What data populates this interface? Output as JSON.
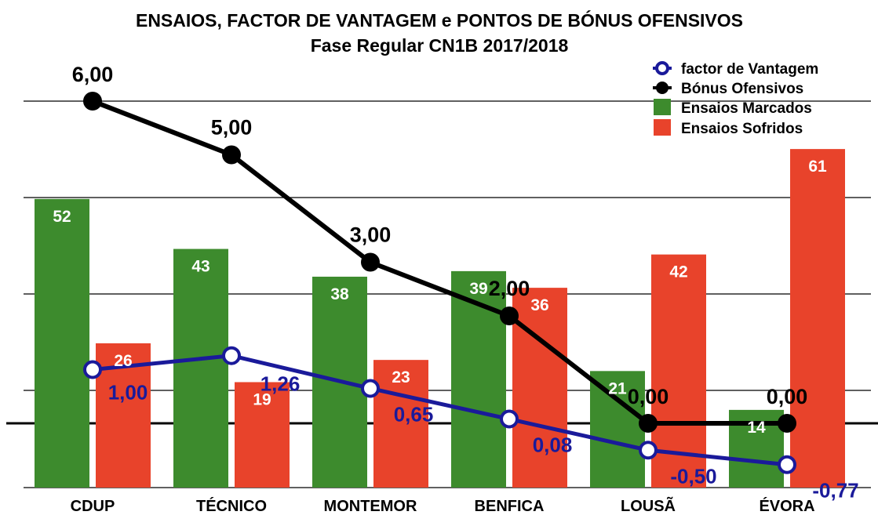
{
  "chart_data": {
    "type": "bar",
    "title": "ENSAIOS, FACTOR DE VANTAGEM e PONTOS DE BÓNUS OFENSIVOS",
    "subtitle": "Fase Regular CN1B 2017/2018",
    "categories": [
      "CDUP",
      "TÉCNICO",
      "MONTEMOR",
      "BENFICA",
      "LOUSÃ",
      "ÉVORA"
    ],
    "bar_series": [
      {
        "name": "Ensaios Marcados",
        "values": [
          52,
          43,
          38,
          39,
          21,
          14
        ],
        "color": "#3d8b2d"
      },
      {
        "name": "Ensaios Sofridos",
        "values": [
          26,
          19,
          23,
          36,
          42,
          61
        ],
        "color": "#e8432b"
      }
    ],
    "line_series": [
      {
        "name": "factor de Vantagem",
        "values": [
          1.0,
          1.26,
          0.65,
          0.08,
          -0.5,
          -0.77
        ],
        "labels": [
          "1,00",
          "1,26",
          "0,65",
          "0,08",
          "-0,50",
          "-0,77"
        ],
        "color": "#1a1a9a",
        "marker": "hollow-circle"
      },
      {
        "name": "Bónus Ofensivos",
        "values": [
          6.0,
          5.0,
          3.0,
          2.0,
          0.0,
          0.0
        ],
        "labels": [
          "6,00",
          "5,00",
          "3,00",
          "2,00",
          "0,00",
          "0,00"
        ],
        "color": "#000000",
        "marker": "filled-circle"
      }
    ],
    "legend": "top-right",
    "grid": true
  }
}
